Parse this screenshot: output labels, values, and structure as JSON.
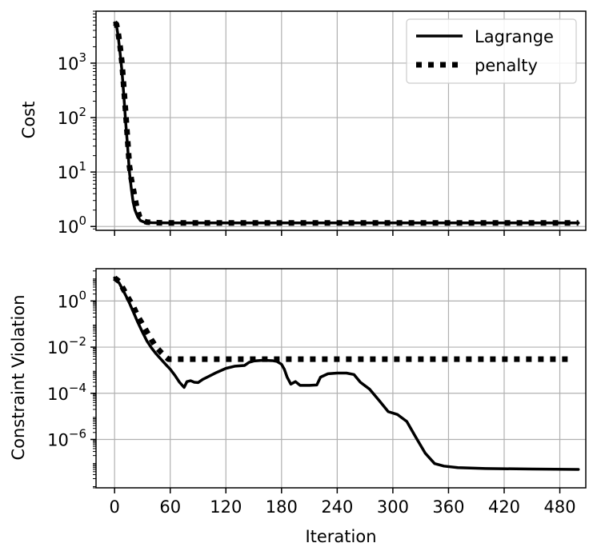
{
  "chart_data": [
    {
      "type": "line",
      "ylabel": "Cost",
      "xlabel": "",
      "yscale": "log",
      "ylim": [
        0.85,
        9000
      ],
      "xlim": [
        -20,
        508
      ],
      "grid": true,
      "legend": "top-right",
      "y_ticks": [
        {
          "value": 1,
          "base": "10",
          "exp": "0"
        },
        {
          "value": 10,
          "base": "10",
          "exp": "1"
        },
        {
          "value": 100,
          "base": "10",
          "exp": "2"
        },
        {
          "value": 1000,
          "base": "10",
          "exp": "3"
        }
      ],
      "series": [
        {
          "name": "Lagrange",
          "style": "solid",
          "points": [
            [
              0,
              5500
            ],
            [
              2,
              5000
            ],
            [
              4,
              3000
            ],
            [
              6,
              1500
            ],
            [
              8,
              700
            ],
            [
              10,
              250
            ],
            [
              12,
              80
            ],
            [
              14,
              30
            ],
            [
              16,
              10
            ],
            [
              18,
              5
            ],
            [
              20,
              2.8
            ],
            [
              22,
              2.0
            ],
            [
              25,
              1.5
            ],
            [
              28,
              1.28
            ],
            [
              32,
              1.2
            ],
            [
              40,
              1.17
            ],
            [
              60,
              1.16
            ],
            [
              100,
              1.16
            ],
            [
              200,
              1.16
            ],
            [
              300,
              1.16
            ],
            [
              400,
              1.16
            ],
            [
              500,
              1.16
            ]
          ]
        },
        {
          "name": "penalty",
          "style": "dotted",
          "points": [
            [
              0,
              5500
            ],
            [
              2,
              5200
            ],
            [
              4,
              3500
            ],
            [
              6,
              2000
            ],
            [
              8,
              1000
            ],
            [
              10,
              350
            ],
            [
              12,
              120
            ],
            [
              14,
              40
            ],
            [
              16,
              13
            ],
            [
              18,
              7.5
            ],
            [
              20,
              5
            ],
            [
              22,
              3.3
            ],
            [
              24,
              2.2
            ],
            [
              27,
              1.5
            ],
            [
              30,
              1.27
            ],
            [
              35,
              1.2
            ],
            [
              45,
              1.17
            ],
            [
              60,
              1.16
            ],
            [
              100,
              1.16
            ],
            [
              200,
              1.16
            ],
            [
              300,
              1.16
            ],
            [
              400,
              1.16
            ],
            [
              500,
              1.16
            ]
          ]
        }
      ]
    },
    {
      "type": "line",
      "xlabel": "Iteration",
      "ylabel": "Constraint Violation",
      "yscale": "log",
      "ylim": [
        8e-09,
        25
      ],
      "xlim": [
        -20,
        508
      ],
      "grid": true,
      "x_ticks": [
        0,
        60,
        120,
        180,
        240,
        300,
        360,
        420,
        480
      ],
      "y_ticks": [
        {
          "value": 1e-06,
          "base": "10",
          "exp": "−6"
        },
        {
          "value": 0.0001,
          "base": "10",
          "exp": "−4"
        },
        {
          "value": 0.01,
          "base": "10",
          "exp": "−2"
        },
        {
          "value": 1,
          "base": "10",
          "exp": "0"
        }
      ],
      "series": [
        {
          "name": "Lagrange",
          "style": "solid",
          "points": [
            [
              0,
              10
            ],
            [
              5,
              6
            ],
            [
              10,
              2.5
            ],
            [
              15,
              1
            ],
            [
              20,
              0.35
            ],
            [
              25,
              0.12
            ],
            [
              30,
              0.045
            ],
            [
              35,
              0.018
            ],
            [
              40,
              0.009
            ],
            [
              45,
              0.005
            ],
            [
              50,
              0.003
            ],
            [
              55,
              0.0018
            ],
            [
              60,
              0.0011
            ],
            [
              65,
              0.0006
            ],
            [
              70,
              0.0003
            ],
            [
              75,
              0.00018
            ],
            [
              78,
              0.00032
            ],
            [
              82,
              0.00035
            ],
            [
              86,
              0.0003
            ],
            [
              90,
              0.00029
            ],
            [
              95,
              0.0004
            ],
            [
              100,
              0.0005
            ],
            [
              110,
              0.0008
            ],
            [
              120,
              0.0012
            ],
            [
              130,
              0.0015
            ],
            [
              140,
              0.0016
            ],
            [
              145,
              0.0022
            ],
            [
              150,
              0.0025
            ],
            [
              160,
              0.0027
            ],
            [
              170,
              0.0026
            ],
            [
              175,
              0.0024
            ],
            [
              180,
              0.0018
            ],
            [
              183,
              0.0011
            ],
            [
              186,
              0.0005
            ],
            [
              190,
              0.00025
            ],
            [
              195,
              0.00032
            ],
            [
              200,
              0.00022
            ],
            [
              210,
              0.00022
            ],
            [
              218,
              0.00023
            ],
            [
              222,
              0.0005
            ],
            [
              230,
              0.0007
            ],
            [
              240,
              0.00075
            ],
            [
              250,
              0.00075
            ],
            [
              258,
              0.00065
            ],
            [
              265,
              0.0003
            ],
            [
              275,
              0.00015
            ],
            [
              285,
              5e-05
            ],
            [
              295,
              1.6e-05
            ],
            [
              305,
              1.2e-05
            ],
            [
              315,
              6e-06
            ],
            [
              325,
              1.2e-06
            ],
            [
              335,
              2.5e-07
            ],
            [
              345,
              9e-08
            ],
            [
              355,
              7e-08
            ],
            [
              370,
              6e-08
            ],
            [
              400,
              5.5e-08
            ],
            [
              450,
              5.2e-08
            ],
            [
              500,
              5e-08
            ]
          ]
        },
        {
          "name": "penalty",
          "style": "dotted",
          "points": [
            [
              0,
              10
            ],
            [
              5,
              7
            ],
            [
              10,
              3
            ],
            [
              15,
              1.3
            ],
            [
              20,
              0.6
            ],
            [
              25,
              0.22
            ],
            [
              30,
              0.1
            ],
            [
              35,
              0.045
            ],
            [
              40,
              0.02
            ],
            [
              45,
              0.01
            ],
            [
              50,
              0.006
            ],
            [
              55,
              0.0038
            ],
            [
              58,
              0.003
            ],
            [
              60,
              0.003
            ],
            [
              200,
              0.003
            ],
            [
              300,
              0.003
            ],
            [
              400,
              0.003
            ],
            [
              490,
              0.003
            ]
          ]
        }
      ]
    }
  ],
  "legend": {
    "entries": [
      "Lagrange",
      "penalty"
    ]
  }
}
